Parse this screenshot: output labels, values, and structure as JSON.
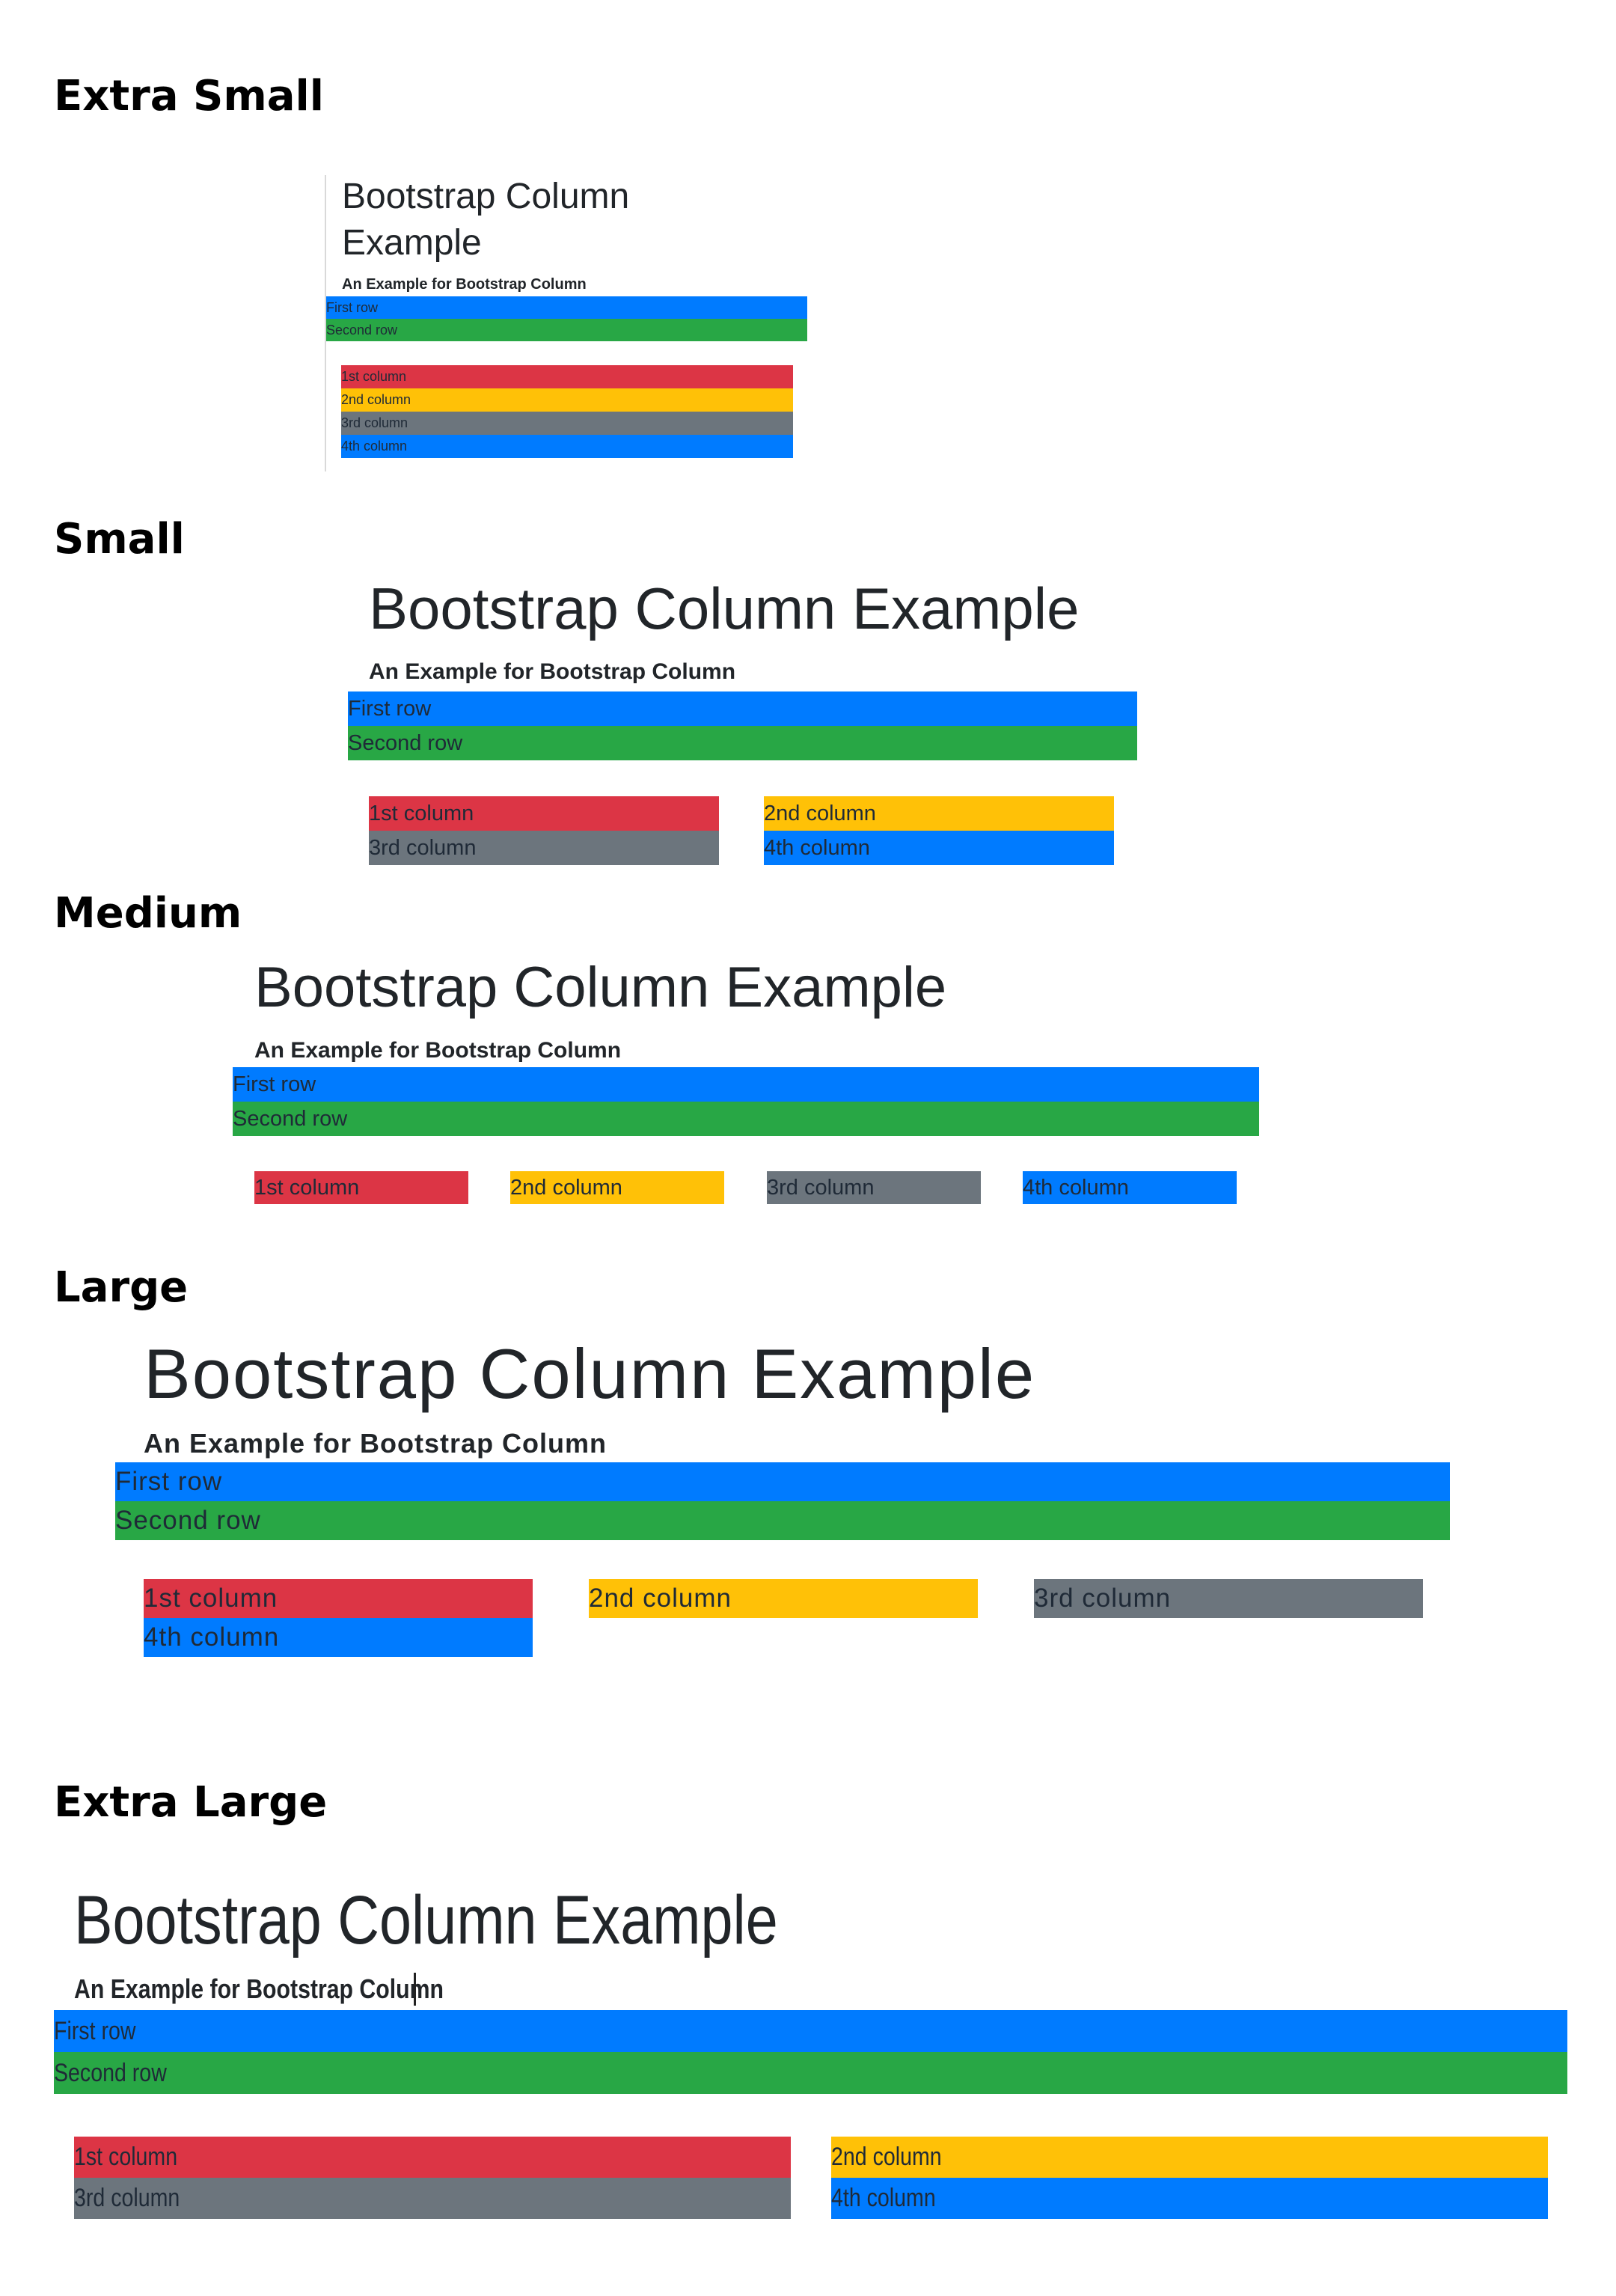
{
  "sections": {
    "extra_small": "Extra Small",
    "small": "Small",
    "medium": "Medium",
    "large": "Large",
    "extra_large": "Extra Large"
  },
  "demo": {
    "title": "Bootstrap Column Example",
    "subtitle": "An Example for Bootstrap Column",
    "rows": [
      "First row",
      "Second row"
    ],
    "columns": [
      "1st column",
      "2nd column",
      "3rd column",
      "4th column"
    ]
  },
  "colors": {
    "blue": "#007bff",
    "green": "#28a745",
    "red": "#dc3545",
    "yellow": "#ffc107",
    "gray": "#6c757d"
  }
}
